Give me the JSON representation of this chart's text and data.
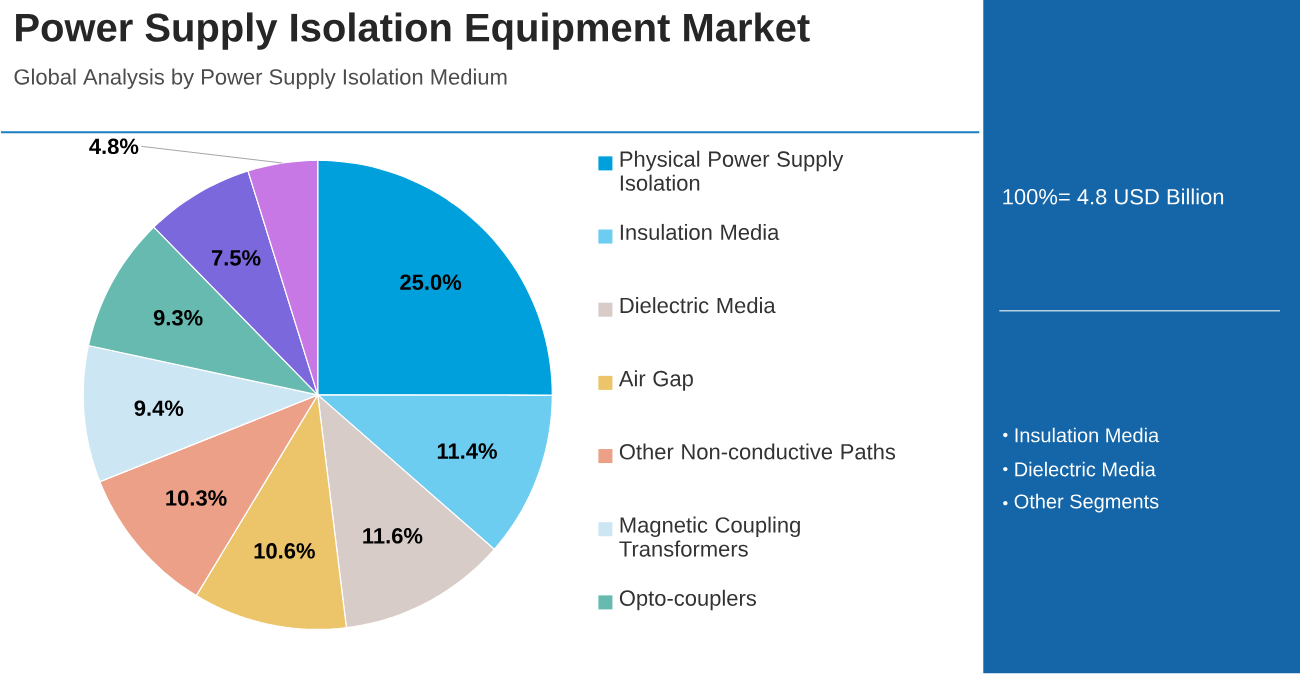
{
  "chart_data": {
    "type": "pie",
    "title": "Power Supply Isolation Equipment Market",
    "subtitle": "Global Analysis by Power Supply Isolation Medium",
    "categories": [
      "Physical Power Supply Isolation",
      "Insulation Media",
      "Dielectric Media",
      "Air Gap",
      "Other Non-conductive Paths",
      "Magnetic Coupling Transformers",
      "Opto-couplers",
      null,
      null
    ],
    "values": [
      25.0,
      11.4,
      11.6,
      10.6,
      10.3,
      9.4,
      9.3,
      7.5,
      4.8
    ],
    "value_labels": [
      "25.0%",
      "11.4%",
      "11.6%",
      "10.6%",
      "10.3%",
      "9.4%",
      "9.3%",
      "7.5%",
      "4.8%"
    ],
    "colors": [
      "#00a0dc",
      "#6ccdf0",
      "#d8ccc8",
      "#ecc46a",
      "#eca088",
      "#cde6f4",
      "#66bab0",
      "#7a68dc",
      "#c878e4"
    ],
    "legend": "right",
    "annotations": [
      "100%= 4.8 USD Billion",
      "Insulation Media",
      "Dielectric Media",
      "Other Segments"
    ]
  }
}
